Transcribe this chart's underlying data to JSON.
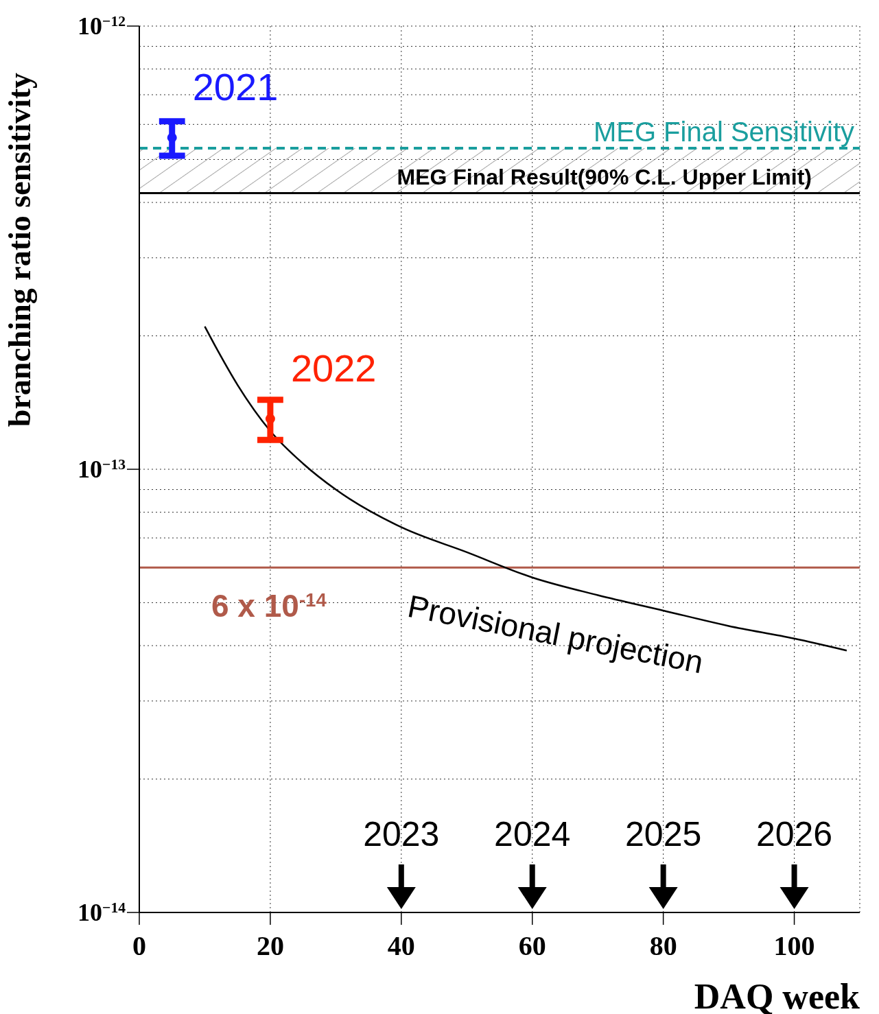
{
  "chart_data": {
    "type": "line",
    "xlabel": "DAQ week",
    "ylabel": "branching ratio sensitivity",
    "xlim": [
      0,
      110
    ],
    "xticks": [
      0,
      20,
      40,
      60,
      80,
      100
    ],
    "ylim": [
      1e-14,
      1e-12
    ],
    "log": "y",
    "yticks": [
      {
        "value": 1e-14,
        "label": "10$^{−14}$"
      },
      {
        "value": 2e-14,
        "label": null
      },
      {
        "value": 3e-14,
        "label": null
      },
      {
        "value": 4e-14,
        "label": null
      },
      {
        "value": 5e-14,
        "label": null
      },
      {
        "value": 6e-14,
        "label": null
      },
      {
        "value": 7e-14,
        "label": null
      },
      {
        "value": 8e-14,
        "label": null
      },
      {
        "value": 9e-14,
        "label": null
      },
      {
        "value": 1e-13,
        "label": "10$^{−13}$"
      },
      {
        "value": 2e-13,
        "label": null
      },
      {
        "value": 3e-13,
        "label": null
      },
      {
        "value": 4e-13,
        "label": null
      },
      {
        "value": 5e-13,
        "label": null
      },
      {
        "value": 6e-13,
        "label": null
      },
      {
        "value": 7e-13,
        "label": null
      },
      {
        "value": 8e-13,
        "label": null
      },
      {
        "value": 9e-13,
        "label": null
      },
      {
        "value": 1e-12,
        "label": "10$^{−12}$"
      }
    ],
    "grid": true,
    "legend": false,
    "series": [
      {
        "name": "Provisional projection",
        "marker": "none",
        "color": "#000000",
        "x": [
          10,
          12,
          15,
          20,
          25,
          30,
          40,
          50,
          60,
          70,
          80,
          90,
          100,
          108
        ],
        "values": [
          2.1e-13,
          1.85e-13,
          1.55e-13,
          1.22e-13,
          1.03e-13,
          9e-14,
          7.4e-14,
          6.5e-14,
          5.7e-14,
          5.2e-14,
          4.8e-14,
          4.43e-14,
          4.15e-14,
          3.9e-14
        ]
      },
      {
        "name": "2021",
        "type": "scatter",
        "color": "#1a1aff",
        "marker": "circle",
        "x": [
          5
        ],
        "values": [
          5.6e-13
        ],
        "errors": [
          5e-14
        ]
      },
      {
        "name": "2022",
        "type": "scatter",
        "color": "#ff2200",
        "marker": "circle",
        "x": [
          20
        ],
        "values": [
          1.3e-13
        ],
        "errors": [
          1.35e-14
        ]
      }
    ],
    "ref_lines": [
      {
        "axis": "y",
        "value": 5.3e-13,
        "label": "MEG Final Sensitivity",
        "color": "#1a9e9e",
        "line_style": "dashed"
      },
      {
        "axis": "y",
        "value": 4.2e-13,
        "label": "MEG Final Result(90% C.L. Upper Limit)",
        "color": "#000000",
        "line_style": "solid"
      },
      {
        "axis": "y",
        "value": 6e-14,
        "label": "6 x 10$^{-14}$",
        "color": "#b05a4a",
        "line_style": "solid"
      }
    ],
    "bands": [
      {
        "axis": "y",
        "from": 4.2e-13,
        "to": 5.3e-13,
        "color": "#888888"
      }
    ],
    "annotations": [
      "2023",
      "2024",
      "2025",
      "2026"
    ]
  }
}
